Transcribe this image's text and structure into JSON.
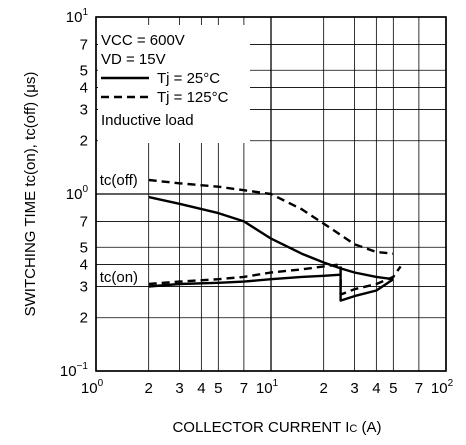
{
  "chart_data": {
    "type": "line",
    "xlabel": "COLLECTOR CURRENT",
    "xlabel_symbol": "I",
    "xlabel_symbol_sub": "C",
    "xlabel_unit": "(A)",
    "ylabel": "SWITCHING TIME",
    "ylabel_symbols": "tc(on), tc(off) (μs)",
    "x_scale": "log",
    "y_scale": "log",
    "xlim": [
      1,
      100
    ],
    "ylim": [
      0.1,
      10
    ],
    "grid": true,
    "legend_position": "top-left",
    "x_major_ticks": [
      {
        "value": 1,
        "base": "10",
        "exp": "0"
      },
      {
        "value": 10,
        "base": "10",
        "exp": "1"
      },
      {
        "value": 100,
        "base": "10",
        "exp": "2"
      }
    ],
    "x_minor_ticks": [
      {
        "value": 2,
        "label": "2"
      },
      {
        "value": 3,
        "label": "3"
      },
      {
        "value": 4,
        "label": "4"
      },
      {
        "value": 5,
        "label": "5"
      },
      {
        "value": 7,
        "label": "7"
      },
      {
        "value": 20,
        "label": "2"
      },
      {
        "value": 30,
        "label": "3"
      },
      {
        "value": 40,
        "label": "4"
      },
      {
        "value": 50,
        "label": "5"
      },
      {
        "value": 70,
        "label": "7"
      }
    ],
    "y_major_ticks": [
      {
        "value": 0.1,
        "label": "10",
        "exp": "−1"
      },
      {
        "value": 1,
        "label": "10",
        "exp": "0"
      },
      {
        "value": 10,
        "label": "10",
        "exp": "1"
      }
    ],
    "y_minor_ticks": [
      {
        "value": 0.2,
        "label": "2"
      },
      {
        "value": 0.3,
        "label": "3"
      },
      {
        "value": 0.4,
        "label": "4"
      },
      {
        "value": 0.5,
        "label": "5"
      },
      {
        "value": 0.7,
        "label": "7"
      },
      {
        "value": 2,
        "label": "2"
      },
      {
        "value": 3,
        "label": "3"
      },
      {
        "value": 4,
        "label": "4"
      },
      {
        "value": 5,
        "label": "5"
      },
      {
        "value": 7,
        "label": "7"
      }
    ],
    "conditions": [
      "VCC = 600V",
      "VD = 15V"
    ],
    "legend": [
      {
        "label": "Tj = 25°C",
        "style": "solid"
      },
      {
        "label": "Tj = 125°C",
        "style": "dashed"
      }
    ],
    "note": "Inductive load",
    "curve_labels": [
      {
        "text": "tc(off)",
        "x": 1.05,
        "y": 1.2
      },
      {
        "text": "tc(on)",
        "x": 1.05,
        "y": 0.34
      }
    ],
    "series": [
      {
        "curve": "tc(off)",
        "style": "dashed",
        "x": [
          2,
          3,
          5,
          7,
          10,
          15,
          20,
          30,
          40,
          50
        ],
        "y": [
          1.2,
          1.15,
          1.1,
          1.05,
          1.0,
          0.82,
          0.68,
          0.52,
          0.47,
          0.46
        ]
      },
      {
        "curve": "tc(off)",
        "style": "solid",
        "x": [
          2,
          3,
          5,
          7,
          10,
          15,
          20,
          25,
          30,
          40,
          50
        ],
        "y": [
          0.96,
          0.88,
          0.78,
          0.7,
          0.56,
          0.46,
          0.41,
          0.38,
          0.36,
          0.34,
          0.33
        ]
      },
      {
        "curve": "tc(on)",
        "style": "dashed",
        "x": [
          2,
          3,
          5,
          7,
          10,
          15,
          20,
          25,
          25,
          30,
          40,
          50,
          55
        ],
        "y": [
          0.31,
          0.32,
          0.33,
          0.34,
          0.36,
          0.375,
          0.39,
          0.4,
          0.27,
          0.29,
          0.31,
          0.34,
          0.39
        ]
      },
      {
        "curve": "tc(on)",
        "style": "solid",
        "x": [
          2,
          3,
          5,
          7,
          10,
          15,
          20,
          25,
          25,
          30,
          40,
          50
        ],
        "y": [
          0.3,
          0.31,
          0.315,
          0.32,
          0.33,
          0.34,
          0.345,
          0.35,
          0.25,
          0.265,
          0.285,
          0.33
        ]
      }
    ]
  }
}
